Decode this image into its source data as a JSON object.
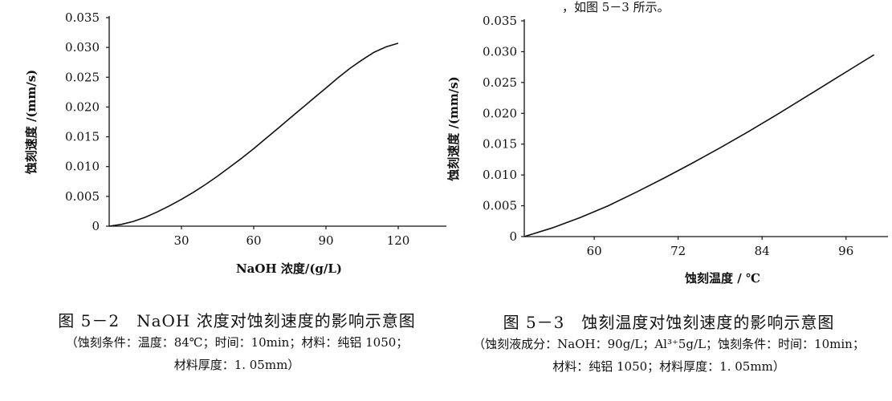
{
  "page_top_fragment": "，如图 5－3 所示。",
  "chart_data": [
    {
      "type": "line",
      "xlabel": "NaOH 浓度/(g/L)",
      "ylabel": "蚀刻速度 /(mm/s)",
      "xlim": [
        0,
        140
      ],
      "ylim": [
        0,
        0.035
      ],
      "xticks": [
        30,
        60,
        90,
        120
      ],
      "yticks": [
        0,
        0.005,
        0.01,
        0.015,
        0.02,
        0.025,
        0.03,
        0.035
      ],
      "ytick_labels": [
        "0",
        "0.005",
        "0.010",
        "0.015",
        "0.020",
        "0.025",
        "0.030",
        "0.035"
      ],
      "series": [
        {
          "x": [
            0,
            5,
            10,
            15,
            20,
            25,
            30,
            35,
            40,
            45,
            50,
            55,
            60,
            65,
            70,
            75,
            80,
            85,
            90,
            95,
            100,
            105,
            110,
            115,
            120
          ],
          "y": [
            0.0,
            0.0003,
            0.0008,
            0.0015,
            0.0024,
            0.0034,
            0.0045,
            0.0057,
            0.007,
            0.0084,
            0.0099,
            0.0114,
            0.013,
            0.0147,
            0.0164,
            0.0181,
            0.0198,
            0.0215,
            0.0232,
            0.0249,
            0.0265,
            0.0279,
            0.0292,
            0.0301,
            0.0307
          ]
        }
      ],
      "caption_title": "图 5－2　NaOH 浓度对蚀刻速度的影响示意图",
      "caption_note_1": "（蚀刻条件：温度：84℃；时间：10min；材料：纯铝 1050；",
      "caption_note_2": "材料厚度：1. 05mm）"
    },
    {
      "type": "line",
      "xlabel": "蚀刻温度 / ℃",
      "ylabel": "蚀刻速度 /(mm/s)",
      "xlim": [
        50,
        102
      ],
      "ylim": [
        0,
        0.035
      ],
      "xticks": [
        60,
        72,
        84,
        96
      ],
      "yticks": [
        0,
        0.005,
        0.01,
        0.015,
        0.02,
        0.025,
        0.03,
        0.035
      ],
      "ytick_labels": [
        "0",
        "0.005",
        "0.010",
        "0.015",
        "0.020",
        "0.025",
        "0.030",
        "0.035"
      ],
      "series": [
        {
          "x": [
            50,
            54,
            58,
            62,
            66,
            70,
            74,
            78,
            82,
            86,
            90,
            94,
            98,
            100
          ],
          "y": [
            0.0,
            0.0014,
            0.0031,
            0.005,
            0.0072,
            0.0095,
            0.0119,
            0.0144,
            0.017,
            0.0197,
            0.0225,
            0.0253,
            0.0281,
            0.0295
          ]
        }
      ],
      "caption_title": "图 5－3　蚀刻温度对蚀刻速度的影响示意图",
      "caption_note_1": "（蚀刻液成分：NaOH：90g/L；Al³⁺5g/L；蚀刻条件：时间：10min；",
      "caption_note_2": "材料：纯铝 1050；材料厚度：1. 05mm）"
    }
  ]
}
